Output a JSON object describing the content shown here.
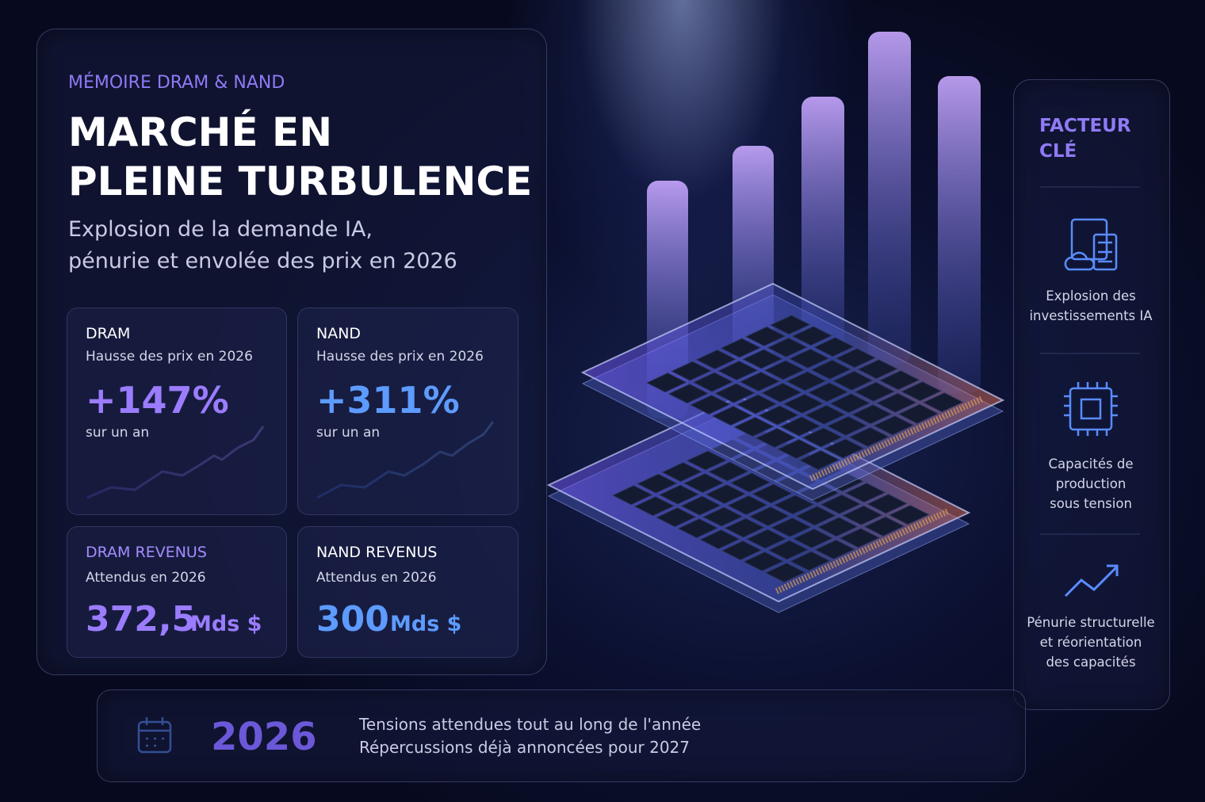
{
  "header": {
    "kicker": "MÉMOIRE DRAM & NAND",
    "title": [
      "MARCHÉ EN",
      "PLEINE TURBULENCE"
    ],
    "subtitle": [
      "Explosion de la demande IA,",
      "pénurie et envolée des prix en 2026"
    ]
  },
  "cards": [
    {
      "label": "DRAM",
      "sublabel": "Hausse des prix en 2026",
      "value": "+147%",
      "caption": "sur un an"
    },
    {
      "label": "NAND",
      "sublabel": "Hausse des prix en 2026",
      "value": "+311%",
      "caption": "sur un an"
    },
    {
      "label": "DRAM REVENUS",
      "sublabel": "Attendus en 2026",
      "value": "372,5",
      "unit": "Mds $"
    },
    {
      "label": "NAND REVENUS",
      "sublabel": "Attendus en 2026",
      "value": "300",
      "unit": "Mds $"
    }
  ],
  "key_factors": {
    "title": [
      "FACTEUR",
      "CLÉ"
    ],
    "items": [
      [
        "Explosion des",
        "investissements IA"
      ],
      [
        "Capacités de",
        "production",
        "sous tension"
      ],
      [
        "Pénurie structurelle",
        "et réorientation",
        "des capacités"
      ]
    ]
  },
  "footer": {
    "year": "2026",
    "lines": [
      "Tensions attendues tout au long de l'année",
      "Répercussions déjà annoncées pour 2027"
    ]
  }
}
